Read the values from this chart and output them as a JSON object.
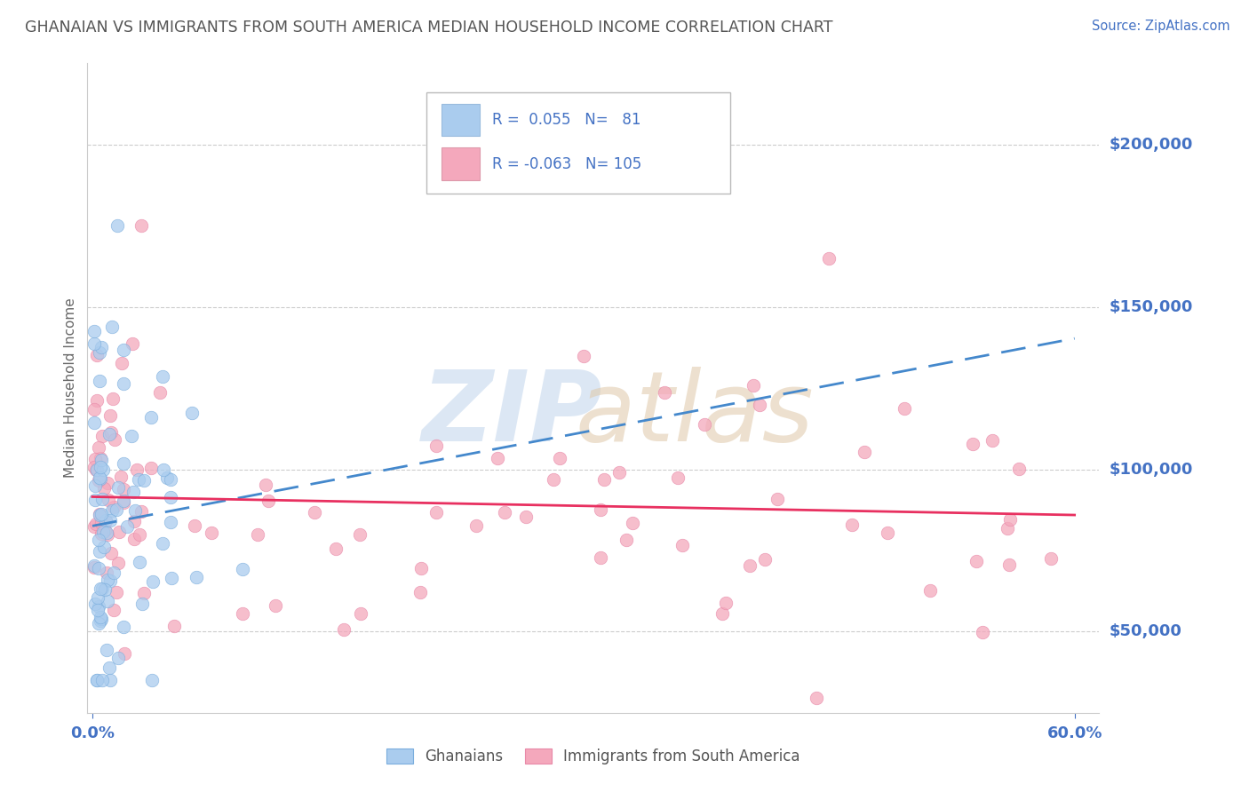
{
  "title": "GHANAIAN VS IMMIGRANTS FROM SOUTH AMERICA MEDIAN HOUSEHOLD INCOME CORRELATION CHART",
  "source": "Source: ZipAtlas.com",
  "ylabel": "Median Household Income",
  "ytick_vals": [
    50000,
    100000,
    150000,
    200000
  ],
  "ytick_labels": [
    "$50,000",
    "$100,000",
    "$150,000",
    "$200,000"
  ],
  "xmin": -0.003,
  "xmax": 0.615,
  "ymin": 25000,
  "ymax": 225000,
  "legend1_label": "Ghanaians",
  "legend2_label": "Immigrants from South America",
  "R1": 0.055,
  "N1": 81,
  "R2": -0.063,
  "N2": 105,
  "scatter_color1": "#aaccee",
  "scatter_color2": "#f4a8bc",
  "scatter_edge1": "#7aaddd",
  "scatter_edge2": "#e888a8",
  "line_color1": "#4488cc",
  "line_color2": "#e83060",
  "title_color": "#555555",
  "axis_label_color": "#4472c4",
  "source_color": "#4472c4",
  "grid_color": "#cccccc",
  "legend_box_color1": "#aaccee",
  "legend_box_color2": "#f4a8bc",
  "watermark_zip_color": "#c5d8ee",
  "watermark_atlas_color": "#dfc8a8"
}
